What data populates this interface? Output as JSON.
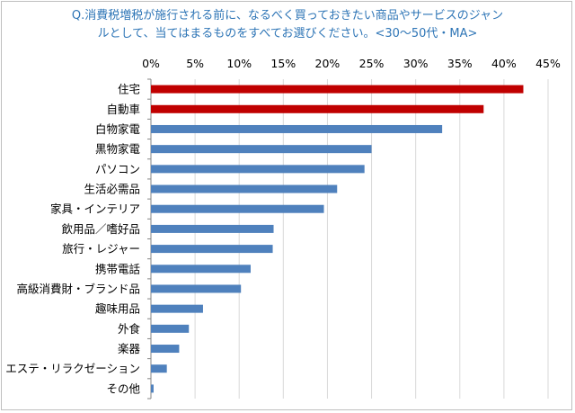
{
  "chart_data": {
    "type": "bar",
    "orientation": "horizontal",
    "title_lines": [
      "Q.消費税増税が施行される前に、なるべく買っておきたい商品やサービスのジャン",
      "ルとして、当てはまるものをすべてお選びください。<30〜50代・MA>"
    ],
    "x_ticks": [
      "0%",
      "5%",
      "10%",
      "15%",
      "20%",
      "25%",
      "30%",
      "35%",
      "40%",
      "45%"
    ],
    "xlim": [
      0,
      45
    ],
    "x_axis_position": "top",
    "grid": true,
    "legend": "none",
    "categories": [
      "住宅",
      "自動車",
      "白物家電",
      "黒物家電",
      "パソコン",
      "生活必需品",
      "家具・インテリア",
      "飲用品／嗜好品",
      "旅行・レジャー",
      "携帯電話",
      "高級消費財・ブランド品",
      "趣味用品",
      "外食",
      "楽器",
      "エステ・リラクゼーション",
      "その他"
    ],
    "values": [
      42.2,
      37.7,
      33.0,
      25.0,
      24.2,
      21.1,
      19.6,
      13.9,
      13.8,
      11.3,
      10.2,
      5.9,
      4.3,
      3.2,
      1.8,
      0.3
    ],
    "highlight_color": "#c00000",
    "bar_color": "#4f81bd",
    "highlighted_categories": [
      "住宅",
      "自動車"
    ]
  }
}
